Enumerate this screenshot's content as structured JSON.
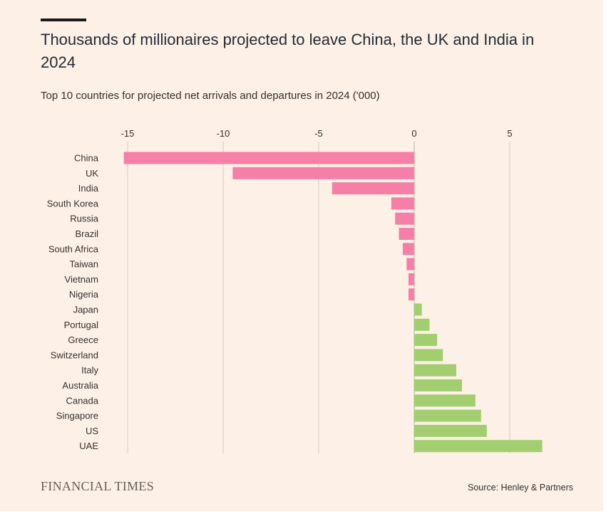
{
  "title": "Thousands of millionaires projected to leave China, the UK and India in 2024",
  "subtitle": "Top 10 countries for projected net arrivals and departures in 2024 ('000)",
  "branding": "FINANCIAL TIMES",
  "source": "Source: Henley & Partners",
  "colors": {
    "negative": "#f57fa6",
    "positive": "#a3ce70",
    "grid": "#d4ccc4",
    "zero_line": "#b8b0a8",
    "label": "#33302e"
  },
  "chart_data": {
    "type": "bar",
    "orientation": "horizontal",
    "categories": [
      "China",
      "UK",
      "India",
      "South Korea",
      "Russia",
      "Brazil",
      "South Africa",
      "Taiwan",
      "Vietnam",
      "Nigeria",
      "Japan",
      "Portugal",
      "Greece",
      "Switzerland",
      "Italy",
      "Australia",
      "Canada",
      "Singapore",
      "US",
      "UAE"
    ],
    "values": [
      -15.2,
      -9.5,
      -4.3,
      -1.2,
      -1.0,
      -0.8,
      -0.6,
      -0.4,
      -0.3,
      -0.3,
      0.4,
      0.8,
      1.2,
      1.5,
      2.2,
      2.5,
      3.2,
      3.5,
      3.8,
      6.7
    ],
    "xticks": [
      "-15",
      "-10",
      "-5",
      "0",
      "5"
    ],
    "xtick_values": [
      -15,
      -10,
      -5,
      0,
      5
    ],
    "xlim": [
      -15.5,
      7.5
    ],
    "xlabel": "",
    "ylabel": "",
    "grid": true,
    "axis_position": "top"
  }
}
